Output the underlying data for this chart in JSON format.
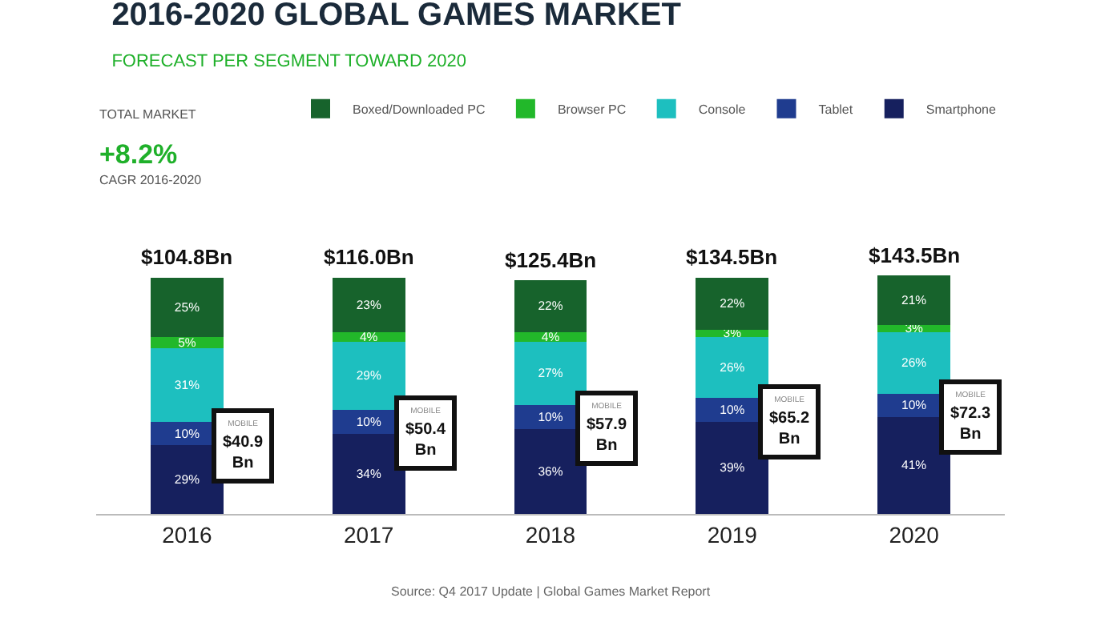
{
  "chart_data": {
    "type": "bar",
    "stacked": true,
    "tick_labels": "x",
    "title": "2016-2020 GLOBAL GAMES MARKET",
    "subtitle": "FORECAST PER SEGMENT TOWARD 2020",
    "categories": [
      "2016",
      "2017",
      "2018",
      "2019",
      "2020"
    ],
    "series": [
      {
        "name": "Smartphone",
        "color": "#16205e",
        "values": [
          29,
          34,
          36,
          39,
          41
        ],
        "value_labels": [
          "29%",
          "34%",
          "36%",
          "39%",
          "41%"
        ]
      },
      {
        "name": "Tablet",
        "color": "#1f3c8f",
        "values": [
          10,
          10,
          10,
          10,
          10
        ],
        "value_labels": [
          "10%",
          "10%",
          "10%",
          "10%",
          "10%"
        ]
      },
      {
        "name": "Console",
        "color": "#1dbfbf",
        "values": [
          31,
          29,
          27,
          26,
          26
        ],
        "value_labels": [
          "31%",
          "29%",
          "27%",
          "26%",
          "26%"
        ]
      },
      {
        "name": "Browser PC",
        "color": "#22b82a",
        "values": [
          5,
          4,
          4,
          3,
          3
        ],
        "value_labels": [
          "5%",
          "4%",
          "4%",
          "3%",
          "3%"
        ]
      },
      {
        "name": "Boxed/Downloaded PC",
        "color": "#17632c",
        "values": [
          25,
          23,
          22,
          22,
          21
        ],
        "value_labels": [
          "25%",
          "23%",
          "22%",
          "22%",
          "21%"
        ]
      }
    ],
    "legend": "top right",
    "annotations": [
      "TOTAL MARKET",
      "+8.2%",
      "CAGR 2016-2020",
      {
        "text": "$104.8Bn",
        "x": "2016",
        "y": 100
      },
      {
        "text": "$116.0Bn",
        "x": "2017",
        "y": 100
      },
      {
        "text": "$125.4Bn",
        "x": "2018",
        "y": 99
      },
      {
        "text": "$134.5Bn",
        "x": "2019",
        "y": 100
      },
      {
        "text": "$143.5Bn",
        "x": "2020",
        "y": 101
      },
      {
        "text": "MOBILE\n$40.9\nBn",
        "x": "2016",
        "y": 29
      },
      {
        "text": "MOBILE\n$50.4\nBn",
        "x": "2017",
        "y": 34
      },
      {
        "text": "MOBILE\n$57.9\nBn",
        "x": "2018",
        "y": 36
      },
      {
        "text": "MOBILE\n$65.2\nBn",
        "x": "2019",
        "y": 39
      },
      {
        "text": "MOBILE\n$72.3\nBn",
        "x": "2020",
        "y": 41
      },
      "Source: Q4 2017 Update | Global Games Market Report"
    ]
  }
}
